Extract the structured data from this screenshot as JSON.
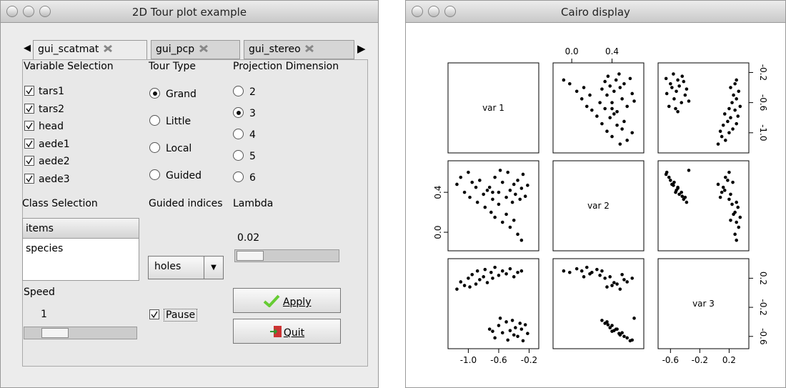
{
  "left_window": {
    "title": "2D Tour plot example",
    "tabs": [
      "gui_scatmat",
      "gui_pcp",
      "gui_stereo"
    ],
    "variable_selection": {
      "label": "Variable Selection",
      "items": [
        "tars1",
        "tars2",
        "head",
        "aede1",
        "aede2",
        "aede3"
      ],
      "checked": [
        true,
        true,
        true,
        true,
        true,
        true
      ]
    },
    "tour_type": {
      "label": "Tour Type",
      "options": [
        "Grand",
        "Little",
        "Local",
        "Guided"
      ],
      "selected": 0
    },
    "projection_dimension": {
      "label": "Projection Dimension",
      "options": [
        "2",
        "3",
        "4",
        "5",
        "6"
      ],
      "selected": 1
    },
    "class_selection": {
      "label": "Class Selection",
      "header": "items",
      "rows": [
        "species"
      ]
    },
    "guided_indices": {
      "label": "Guided indices",
      "value": "holes"
    },
    "lambda": {
      "label": "Lambda",
      "value": "0.02"
    },
    "speed": {
      "label": "Speed",
      "value": "1"
    },
    "pause": {
      "label": "Pause",
      "checked": true
    },
    "apply": "Apply",
    "quit": "Quit"
  },
  "right_window": {
    "title": "Cairo display"
  },
  "chart_data": {
    "type": "scatter-matrix",
    "color": "#000000",
    "variables": [
      {
        "name": "var 1",
        "lim": [
          -1.22,
          -0.12
        ],
        "ticks": [
          {
            "value": -1,
            "label": "-1.0"
          },
          -0.6,
          -0.2
        ],
        "values": [
          -0.72,
          -0.65,
          -0.6,
          -0.55,
          -0.5,
          -0.48,
          -0.45,
          -0.42,
          -0.4,
          -0.38,
          -0.35,
          -0.32,
          -0.3,
          -0.28,
          -0.25,
          -0.22,
          -0.58,
          -0.68,
          -1.15,
          -1.1,
          -1.05,
          -1,
          -0.98,
          -0.95,
          -0.9,
          -0.88,
          -0.85,
          -0.8,
          -0.78,
          -0.75,
          -0.7,
          -0.68,
          -0.65,
          -0.6,
          -0.55,
          -0.5,
          -0.45,
          -0.4,
          -0.35,
          -0.3
        ]
      },
      {
        "name": "var 2",
        "lim": [
          -0.15,
          0.68
        ],
        "ticks": [
          {
            "value": 0,
            "label": "0.0"
          },
          0.4
        ],
        "values": [
          0.45,
          0.55,
          0.4,
          0.5,
          0.35,
          0.6,
          0.42,
          0.3,
          0.48,
          0.38,
          0.52,
          0.33,
          0.44,
          0.58,
          0.36,
          0.47,
          0.62,
          0.4,
          0.48,
          0.55,
          0.4,
          0.6,
          0.35,
          0.5,
          0.45,
          0.3,
          0.52,
          0.38,
          0.25,
          0.42,
          0.2,
          0.33,
          0.15,
          0.28,
          0.1,
          0.18,
          0.05,
          0.12,
          -0.02,
          -0.08
        ]
      },
      {
        "name": "var 3",
        "lim": [
          -0.72,
          0.42
        ],
        "ticks": [
          -0.6,
          -0.2,
          0.2
        ],
        "values": [
          -0.5,
          -0.62,
          -0.45,
          -0.55,
          -0.4,
          -0.65,
          -0.52,
          -0.38,
          -0.58,
          -0.48,
          -0.6,
          -0.42,
          -0.5,
          -0.66,
          -0.44,
          -0.56,
          -0.35,
          -0.53,
          0.05,
          0.15,
          0.1,
          0.2,
          0.08,
          0.25,
          0.12,
          0.3,
          0.18,
          0.22,
          0.32,
          0.14,
          0.28,
          0.2,
          0.35,
          0.24,
          0.3,
          0.26,
          0.33,
          0.22,
          0.28,
          0.3
        ]
      }
    ]
  }
}
